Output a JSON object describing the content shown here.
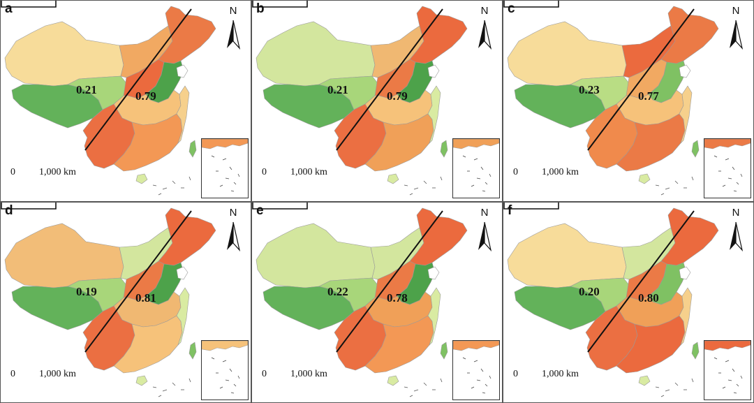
{
  "panels": [
    {
      "label": "a",
      "west": "0.21",
      "east": "0.79",
      "colors": {
        "nw": "#f7dc9a",
        "tibet": "#63b25a",
        "qinghai": "#a8d67a",
        "inner": "#f1a962",
        "ne": "#eb7a46",
        "north": "#eb6a3e",
        "ncp": "#4da24a",
        "central": "#f6c27a",
        "sw": "#eb6f42",
        "south": "#f39855",
        "coast": "#f6d08c"
      }
    },
    {
      "label": "b",
      "west": "0.21",
      "east": "0.79",
      "colors": {
        "nw": "#d3e69e",
        "tibet": "#63b25a",
        "qinghai": "#a8d67a",
        "inner": "#f0b872",
        "ne": "#eb6a3e",
        "north": "#eb7a46",
        "ncp": "#4da24a",
        "central": "#f6c27a",
        "sw": "#eb6f42",
        "south": "#f0a058",
        "coast": "#d9eba2"
      }
    },
    {
      "label": "c",
      "west": "0.23",
      "east": "0.77",
      "colors": {
        "nw": "#f7dc9a",
        "tibet": "#63b25a",
        "qinghai": "#b9dd84",
        "inner": "#eb6a3e",
        "ne": "#eb7a46",
        "north": "#f1a962",
        "ncp": "#7fc163",
        "central": "#f6c27a",
        "sw": "#f08a4c",
        "south": "#eb7a46",
        "coast": "#f6d08c"
      }
    },
    {
      "label": "d",
      "west": "0.19",
      "east": "0.81",
      "colors": {
        "nw": "#f2bd78",
        "tibet": "#63b25a",
        "qinghai": "#a8d67a",
        "inner": "#d3e69e",
        "ne": "#eb6a3e",
        "north": "#eb7a46",
        "ncp": "#4da24a",
        "central": "#f0b872",
        "sw": "#eb6f42",
        "south": "#f6c27a",
        "coast": "#d9eba2"
      }
    },
    {
      "label": "e",
      "west": "0.22",
      "east": "0.78",
      "colors": {
        "nw": "#d3e69e",
        "tibet": "#63b25a",
        "qinghai": "#a8d67a",
        "inner": "#d3e69e",
        "ne": "#eb6a3e",
        "north": "#eb7a46",
        "ncp": "#4da24a",
        "central": "#f0a058",
        "sw": "#eb6f42",
        "south": "#f39855",
        "coast": "#d9eba2"
      }
    },
    {
      "label": "f",
      "west": "0.20",
      "east": "0.80",
      "colors": {
        "nw": "#f7dc9a",
        "tibet": "#63b25a",
        "qinghai": "#a8d67a",
        "inner": "#d3e69e",
        "ne": "#eb6a3e",
        "north": "#eb7a46",
        "ncp": "#7fc163",
        "central": "#f0a058",
        "sw": "#eb6f42",
        "south": "#eb6a3e",
        "coast": "#f6d08c"
      }
    }
  ],
  "north_label": "N",
  "scale": {
    "zero": "0",
    "distance": "1,000 km"
  }
}
